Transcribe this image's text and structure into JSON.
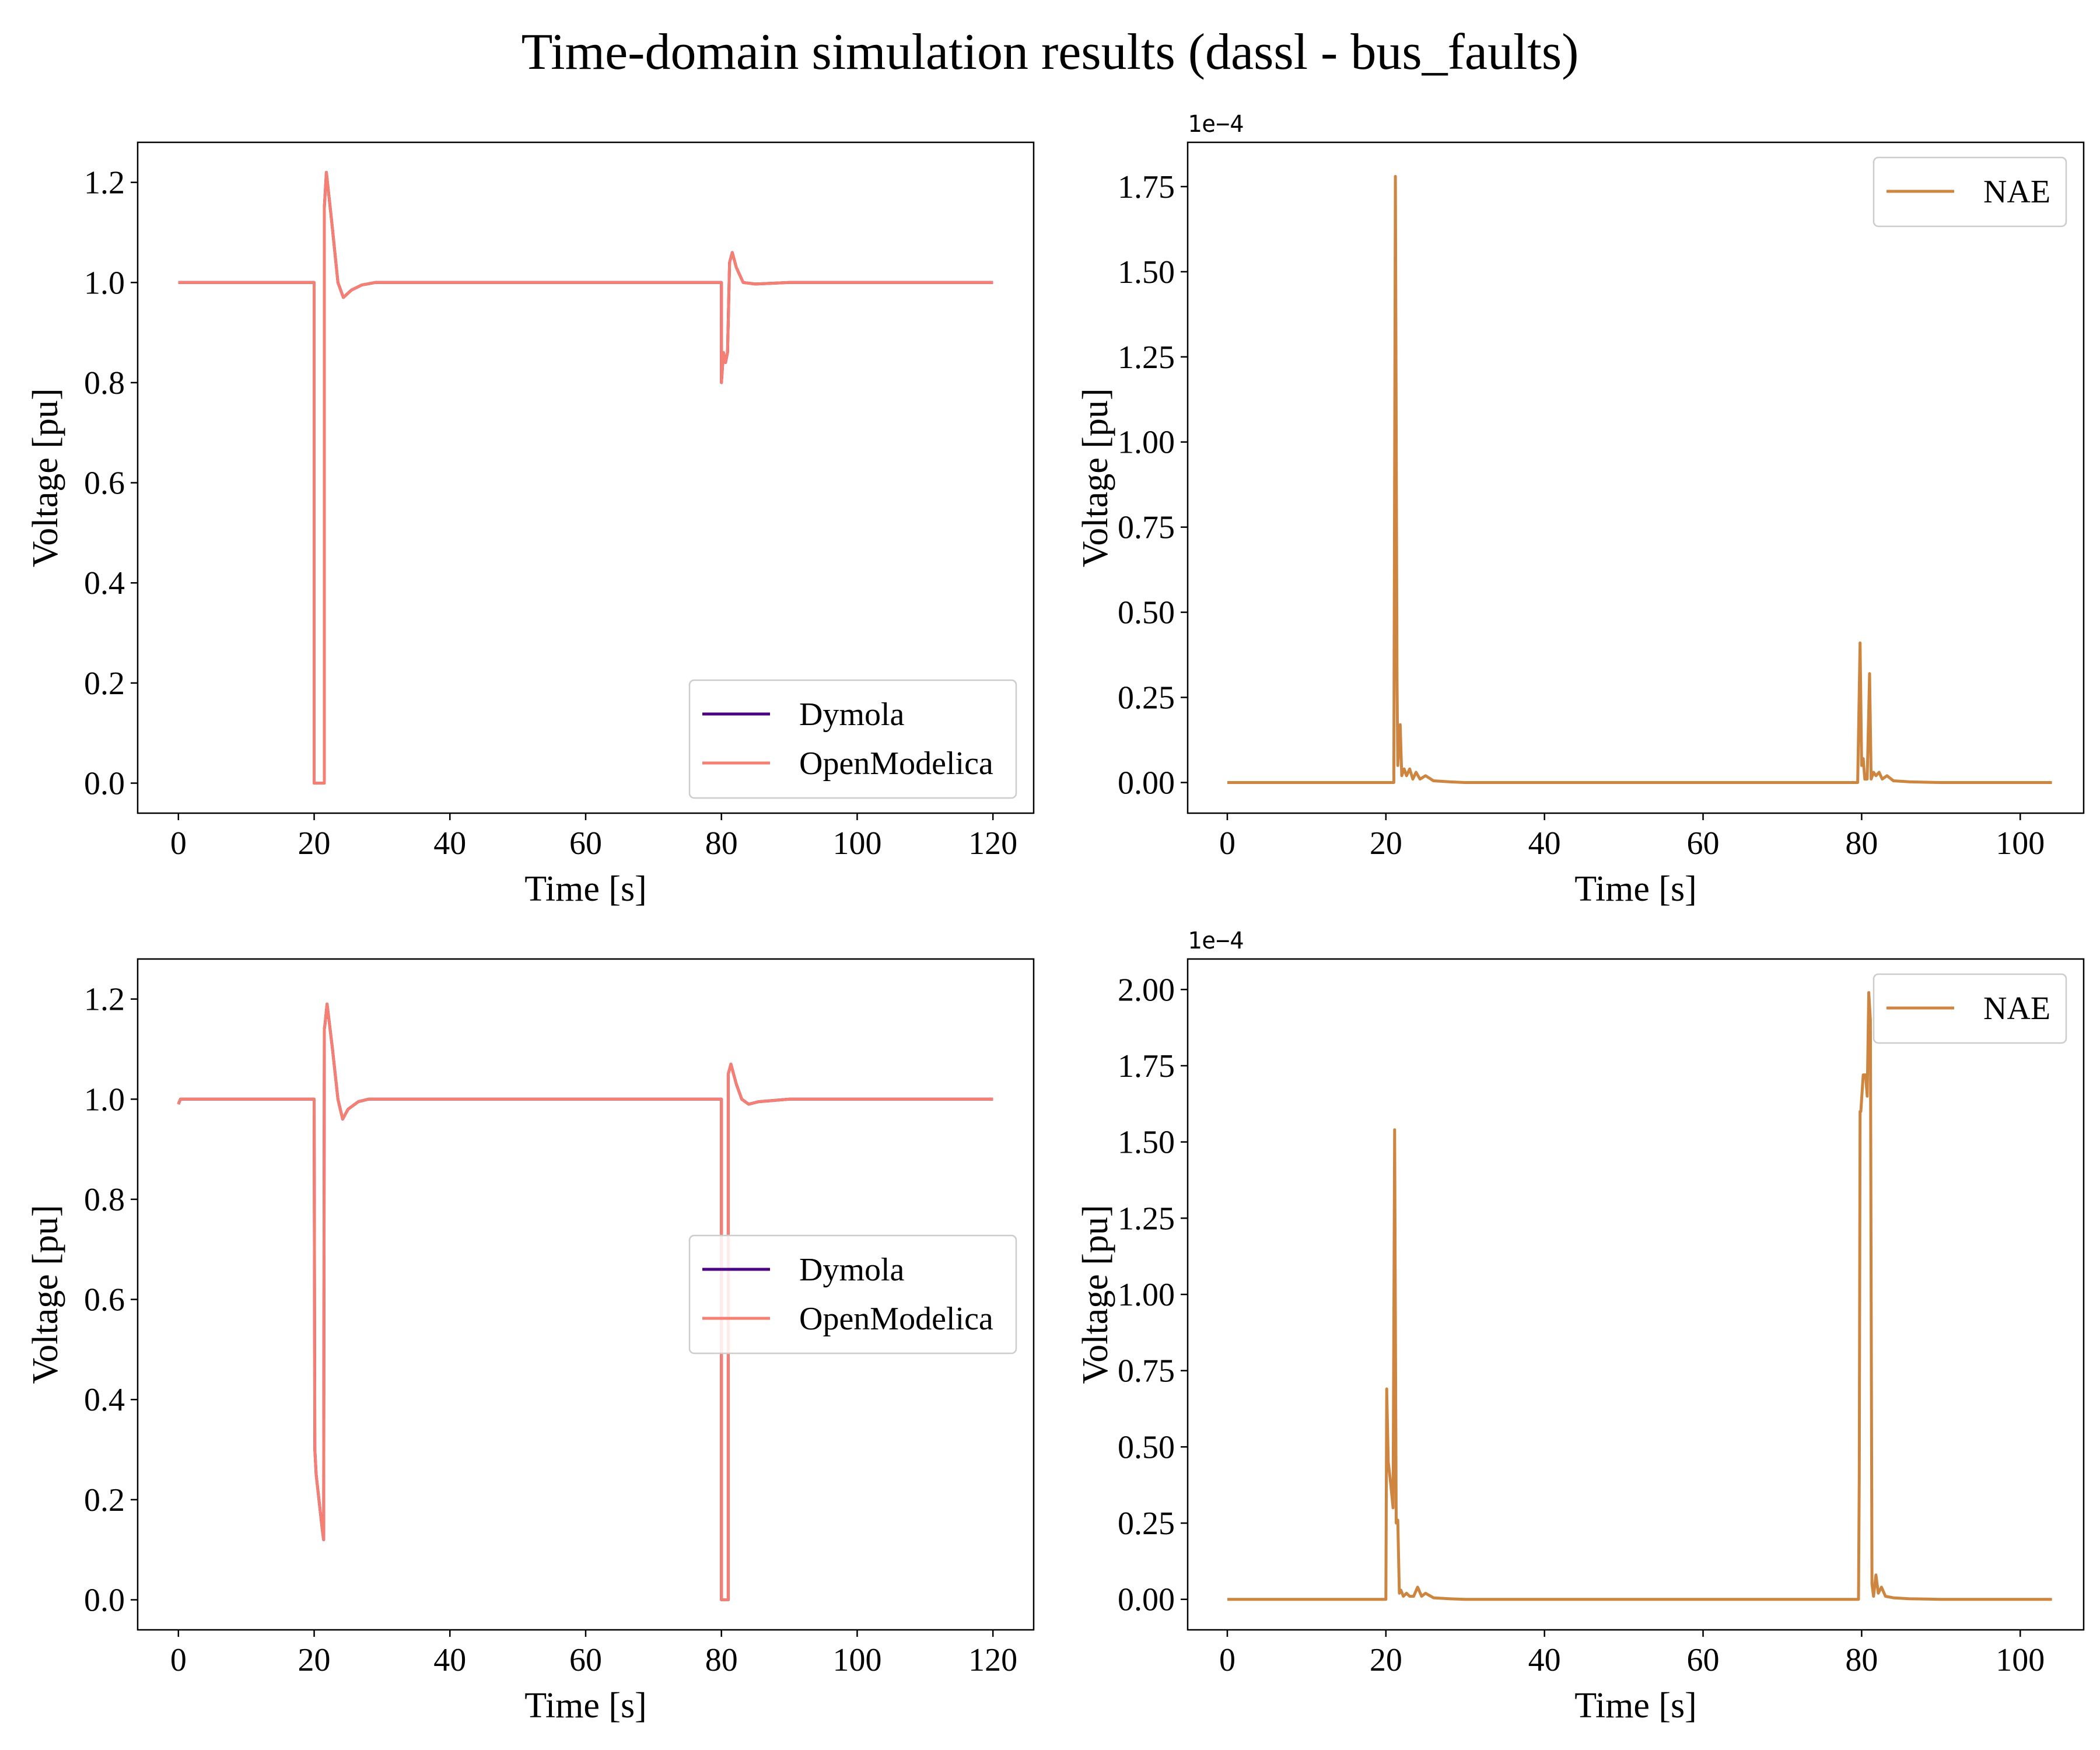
{
  "figure": {
    "title": "Time-domain simulation results (dassl - bus_faults)"
  },
  "colors": {
    "dymola": "#4b0082",
    "openmodelica": "#f47f72",
    "nae": "#cd853f"
  },
  "chart_data": [
    {
      "type": "line",
      "xlabel": "Time [s]",
      "ylabel": "Voltage [pu]",
      "xlim": [
        -6,
        126
      ],
      "ylim": [
        -0.06,
        1.28
      ],
      "xticks": [
        0,
        20,
        40,
        60,
        80,
        100,
        120
      ],
      "yticks": [
        "0.0",
        "0.2",
        "0.4",
        "0.6",
        "0.8",
        "1.0",
        "1.2"
      ],
      "legend_position": "lower right",
      "series": [
        {
          "name": "Dymola",
          "color_key": "dymola",
          "x": [
            0,
            20,
            20,
            21.5,
            21.5,
            21.8,
            22.6,
            23.5,
            24.3,
            25.5,
            27,
            29,
            32,
            80,
            80,
            80.3,
            80.6,
            80.9,
            81.2,
            81.6,
            82.2,
            83.2,
            85,
            90,
            120
          ],
          "y": [
            1.0,
            1.0,
            0.0,
            0.0,
            1.15,
            1.22,
            1.12,
            1.0,
            0.97,
            0.985,
            0.995,
            1.0,
            1.0,
            1.0,
            0.8,
            0.86,
            0.84,
            0.86,
            1.04,
            1.06,
            1.03,
            1.0,
            0.997,
            1.0,
            1.0
          ]
        },
        {
          "name": "OpenModelica",
          "color_key": "openmodelica",
          "x": [
            0,
            20,
            20,
            21.5,
            21.5,
            21.8,
            22.6,
            23.5,
            24.3,
            25.5,
            27,
            29,
            32,
            80,
            80,
            80.3,
            80.6,
            80.9,
            81.2,
            81.6,
            82.2,
            83.2,
            85,
            90,
            120
          ],
          "y": [
            1.0,
            1.0,
            0.0,
            0.0,
            1.15,
            1.22,
            1.12,
            1.0,
            0.97,
            0.985,
            0.995,
            1.0,
            1.0,
            1.0,
            0.8,
            0.86,
            0.84,
            0.86,
            1.04,
            1.06,
            1.03,
            1.0,
            0.997,
            1.0,
            1.0
          ]
        }
      ]
    },
    {
      "type": "line",
      "xlabel": "Time [s]",
      "ylabel": "Voltage [pu]",
      "offset_text": "1e−4",
      "xlim": [
        -5,
        108
      ],
      "ylim": [
        -0.09,
        1.88
      ],
      "xticks": [
        0,
        20,
        40,
        60,
        80,
        100
      ],
      "yticks": [
        "0.00",
        "0.25",
        "0.50",
        "0.75",
        "1.00",
        "1.25",
        "1.50",
        "1.75"
      ],
      "legend_position": "upper right",
      "series": [
        {
          "name": "NAE",
          "color_key": "nae",
          "x": [
            0,
            21,
            21.2,
            21.4,
            21.5,
            21.8,
            22.0,
            22.3,
            22.6,
            23.0,
            23.4,
            23.8,
            24.3,
            25,
            26,
            28,
            30,
            79.5,
            79.8,
            80.0,
            80.2,
            80.4,
            80.7,
            81.0,
            81.2,
            81.5,
            81.8,
            82.2,
            82.6,
            83.2,
            84,
            86,
            90,
            104
          ],
          "y": [
            0,
            0,
            1.78,
            0.3,
            0.05,
            0.17,
            0.02,
            0.04,
            0.02,
            0.04,
            0.01,
            0.03,
            0.01,
            0.02,
            0.005,
            0.002,
            0,
            0,
            0.41,
            0.05,
            0.07,
            0.01,
            0.01,
            0.32,
            0.01,
            0.03,
            0.02,
            0.03,
            0.01,
            0.02,
            0.005,
            0.002,
            0,
            0
          ]
        }
      ]
    },
    {
      "type": "line",
      "xlabel": "Time [s]",
      "ylabel": "Voltage [pu]",
      "xlim": [
        -6,
        126
      ],
      "ylim": [
        -0.06,
        1.28
      ],
      "xticks": [
        0,
        20,
        40,
        60,
        80,
        100,
        120
      ],
      "yticks": [
        "0.0",
        "0.2",
        "0.4",
        "0.6",
        "0.8",
        "1.0",
        "1.2"
      ],
      "legend_position": "center right",
      "series": [
        {
          "name": "Dymola",
          "color_key": "dymola",
          "x": [
            0,
            0.3,
            20,
            20.1,
            20.3,
            21.2,
            21.4,
            21.5,
            21.6,
            21.9,
            22.7,
            23.5,
            24.2,
            25,
            26.5,
            28,
            80,
            80,
            81,
            81,
            81.4,
            82.2,
            83,
            84,
            85.5,
            90,
            120
          ],
          "y": [
            0.99,
            1.0,
            1.0,
            0.3,
            0.25,
            0.14,
            0.12,
            1.14,
            1.15,
            1.19,
            1.1,
            1.0,
            0.96,
            0.98,
            0.995,
            1.0,
            1.0,
            0.0,
            0.0,
            1.05,
            1.07,
            1.03,
            1.0,
            0.99,
            0.995,
            1.0,
            1.0
          ]
        },
        {
          "name": "OpenModelica",
          "color_key": "openmodelica",
          "x": [
            0,
            0.3,
            20,
            20.1,
            20.3,
            21.2,
            21.4,
            21.5,
            21.6,
            21.9,
            22.7,
            23.5,
            24.2,
            25,
            26.5,
            28,
            80,
            80,
            81,
            81,
            81.4,
            82.2,
            83,
            84,
            85.5,
            90,
            120
          ],
          "y": [
            0.99,
            1.0,
            1.0,
            0.3,
            0.25,
            0.14,
            0.12,
            1.14,
            1.15,
            1.19,
            1.1,
            1.0,
            0.96,
            0.98,
            0.995,
            1.0,
            1.0,
            0.0,
            0.0,
            1.05,
            1.07,
            1.03,
            1.0,
            0.99,
            0.995,
            1.0,
            1.0
          ]
        }
      ]
    },
    {
      "type": "line",
      "xlabel": "Time [s]",
      "ylabel": "Voltage [pu]",
      "offset_text": "1e−4",
      "xlim": [
        -5,
        108
      ],
      "ylim": [
        -0.1,
        2.1
      ],
      "xticks": [
        0,
        20,
        40,
        60,
        80,
        100
      ],
      "yticks": [
        "0.00",
        "0.25",
        "0.50",
        "0.75",
        "1.00",
        "1.25",
        "1.50",
        "1.75",
        "2.00"
      ],
      "legend_position": "upper right",
      "series": [
        {
          "name": "NAE",
          "color_key": "nae",
          "x": [
            0,
            20,
            20.1,
            20.3,
            20.6,
            20.9,
            21.1,
            21.3,
            21.5,
            21.7,
            21.9,
            22.2,
            22.6,
            23,
            23.5,
            24,
            24.5,
            25,
            26,
            28,
            30,
            79.6,
            79.7,
            79.8,
            79.9,
            80.2,
            80.5,
            80.7,
            80.9,
            81.1,
            81.3,
            81.5,
            81.8,
            82.1,
            82.5,
            83,
            84,
            86,
            90,
            104
          ],
          "y": [
            0,
            0,
            0.69,
            0.45,
            0.38,
            0.3,
            1.54,
            0.25,
            0.26,
            0.02,
            0.03,
            0.01,
            0.02,
            0.01,
            0.01,
            0.04,
            0.01,
            0.02,
            0.005,
            0.002,
            0,
            0,
            0.4,
            1.6,
            1.6,
            1.72,
            1.72,
            1.65,
            1.99,
            1.9,
            0.05,
            0.01,
            0.08,
            0.02,
            0.04,
            0.01,
            0.005,
            0.002,
            0,
            0
          ]
        }
      ]
    }
  ]
}
